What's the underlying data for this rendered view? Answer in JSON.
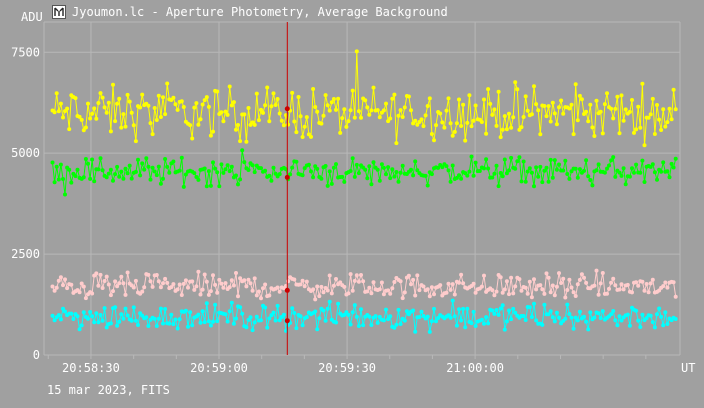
{
  "window": {
    "title": "Jyoumon.lc - Aperture Photometry, Average Background",
    "icon": "app-logo-icon"
  },
  "footer": {
    "text": "15 mar 2023, FITS"
  },
  "colors": {
    "background": "#a0a0a0",
    "grid": "#b8b8b8",
    "text": "#ffffff",
    "cursor": "#cc0000"
  },
  "chart_data": {
    "type": "scatter",
    "title": "",
    "ylabel": "ADU",
    "xlabel": "UT",
    "xlim": [
      "20:58:19",
      "21:00:48"
    ],
    "ylim": [
      0,
      8250
    ],
    "yticks": [
      "0",
      "2500",
      "5000",
      "7500"
    ],
    "xticks": [
      "20:58:30",
      "20:59:00",
      "20:59:30",
      "21:00:00"
    ],
    "grid": true,
    "cursor_time": "20:59:16",
    "series": [
      {
        "color": "#ffff00",
        "mean": 6000,
        "spread": 480,
        "values_at_cursor": 6100
      },
      {
        "color": "#00ff00",
        "mean": 4550,
        "spread": 260,
        "values_at_cursor": 4400
      },
      {
        "color": "#ffcccc",
        "mean": 1700,
        "spread": 230,
        "values_at_cursor": 1600
      },
      {
        "color": "#00ffff",
        "mean": 950,
        "spread": 230,
        "values_at_cursor": 850
      }
    ]
  }
}
